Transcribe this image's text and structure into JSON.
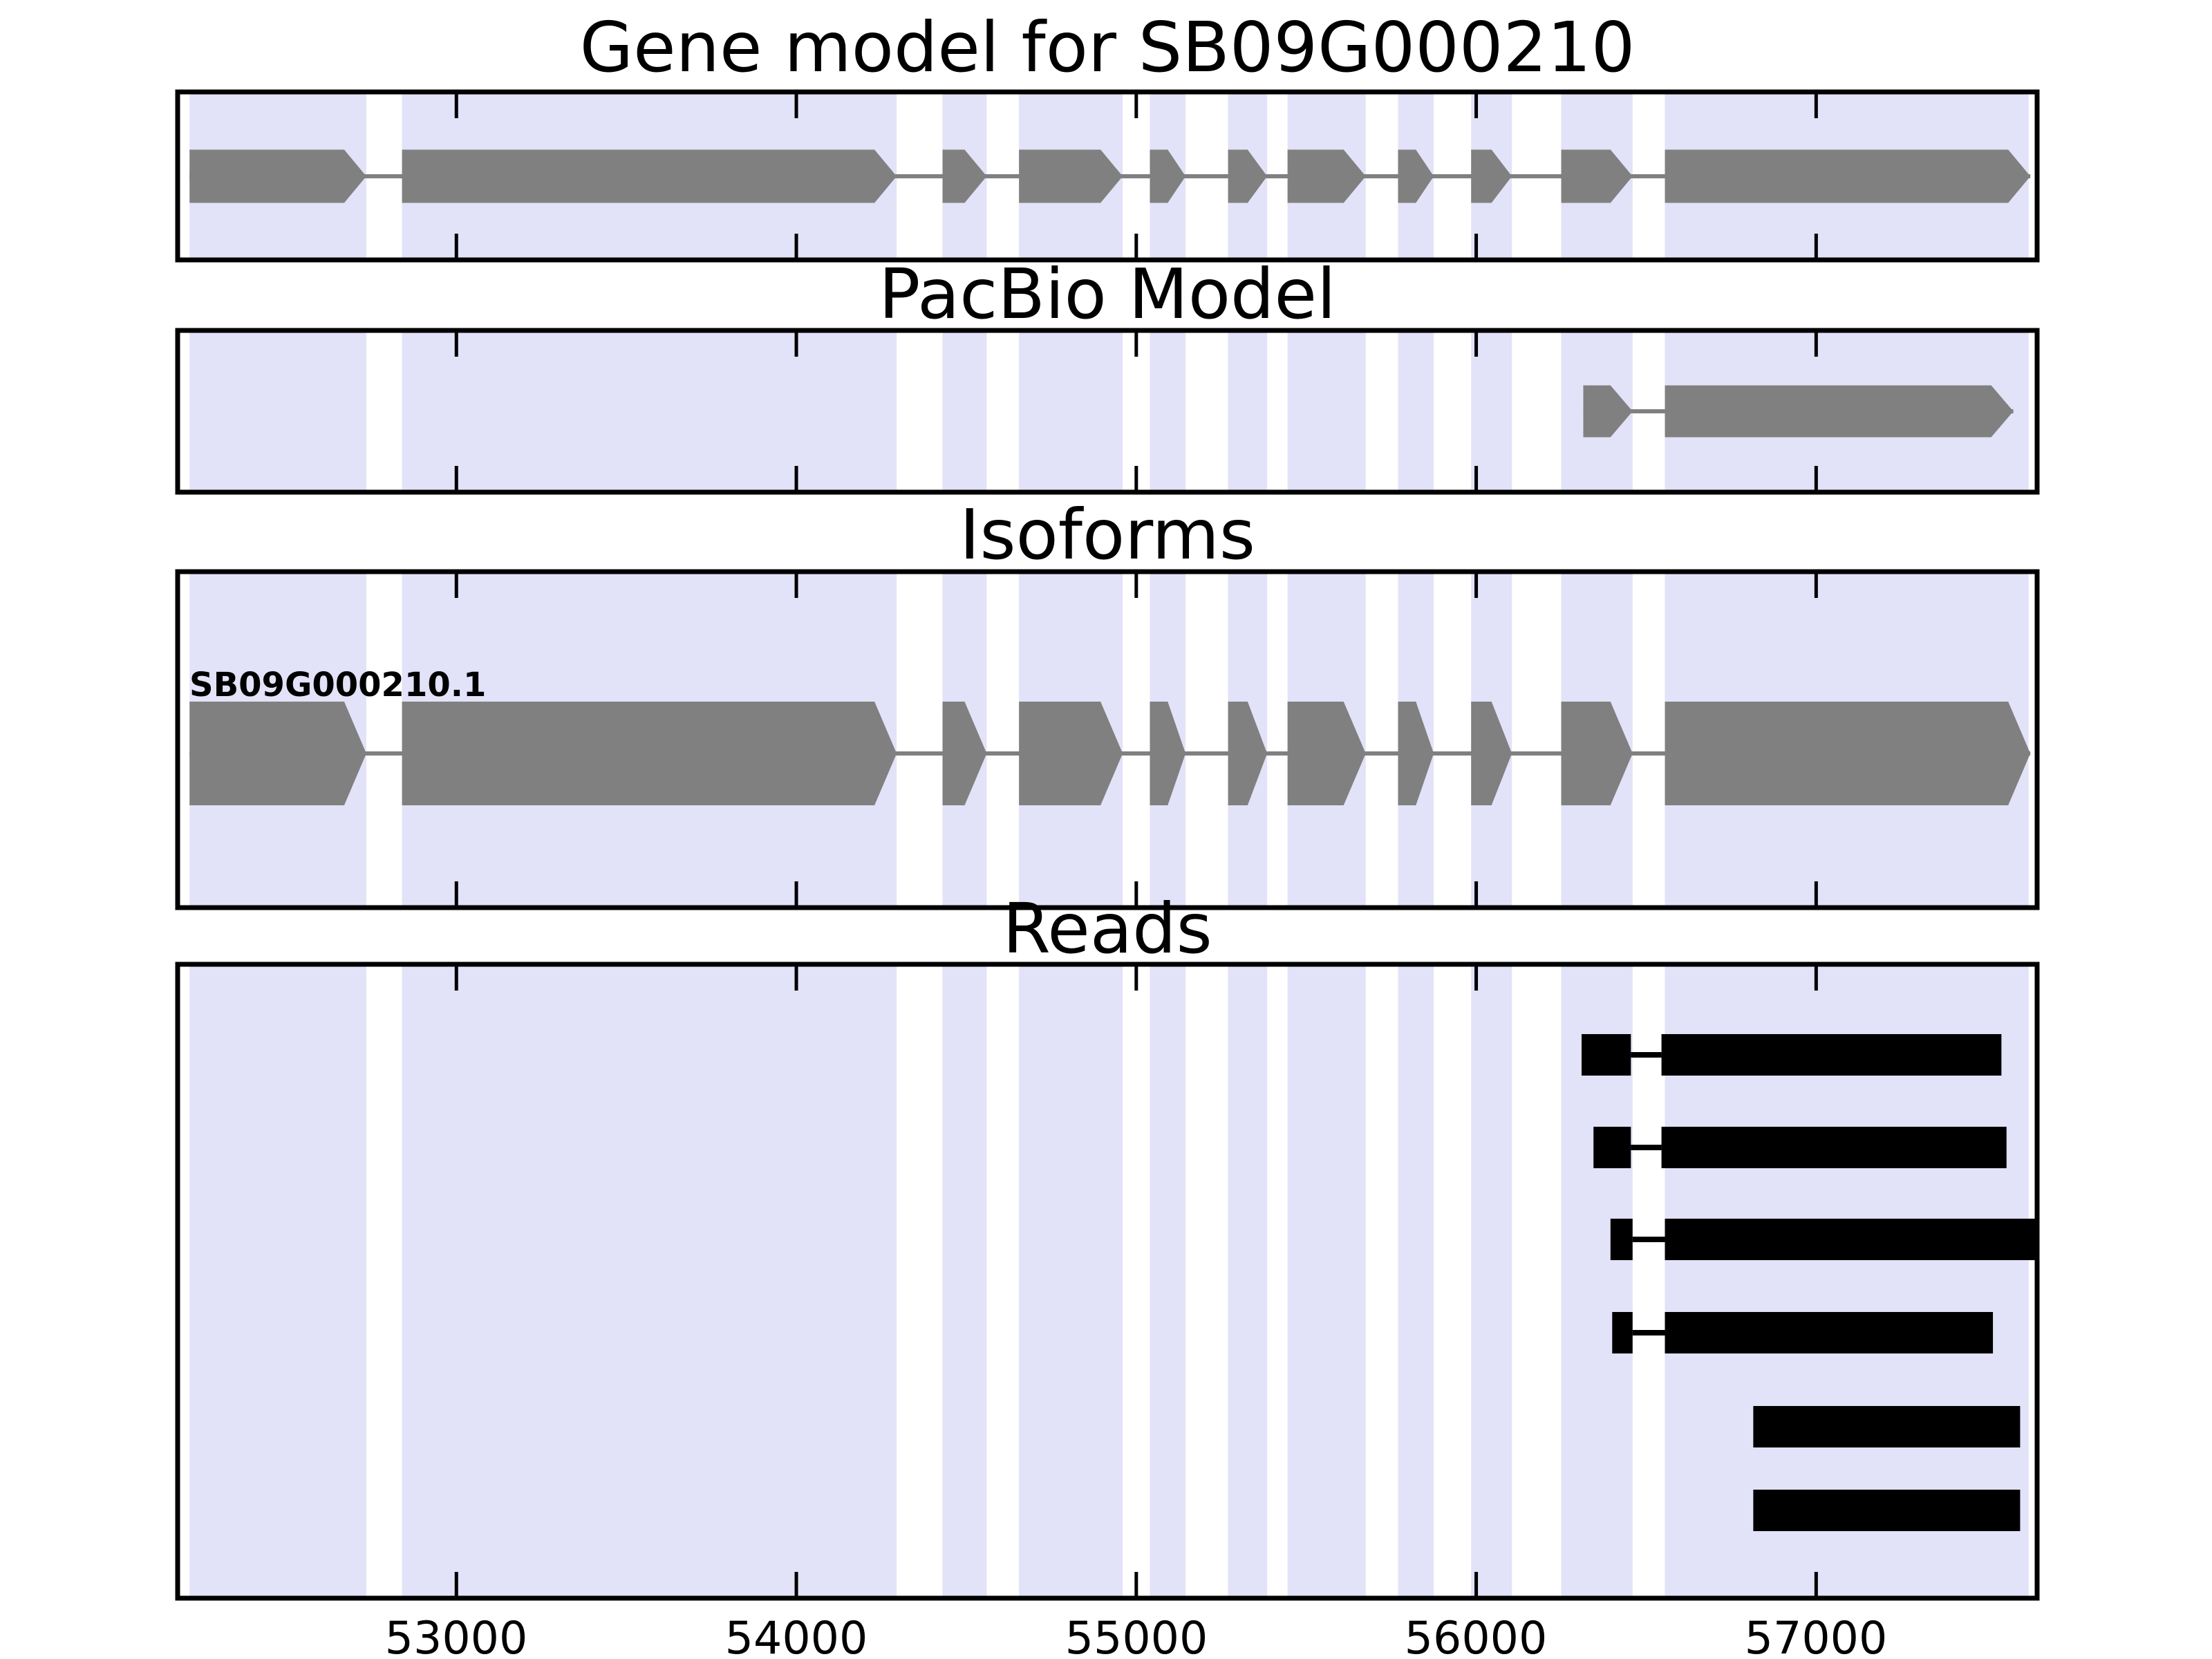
{
  "colors": {
    "background": "#ffffff",
    "highlight_band": "#e2e2f8",
    "exon_fill": "#808080",
    "intron_line": "#808080",
    "read_fill": "#000000",
    "panel_border": "#000000",
    "text": "#000000"
  },
  "chart_data": {
    "type": "gene-structure-tracks",
    "figure_title": "Gene model for SB09G000210",
    "xlim": [
      52180,
      57650
    ],
    "xticks": [
      53000,
      54000,
      55000,
      56000,
      57000
    ],
    "xtick_labels": [
      "53000",
      "54000",
      "55000",
      "56000",
      "57000"
    ],
    "strand": "forward",
    "grid": false,
    "highlight_regions": [
      [
        52215,
        52735
      ],
      [
        52840,
        54295
      ],
      [
        54430,
        54560
      ],
      [
        54655,
        54960
      ],
      [
        55040,
        55145
      ],
      [
        55270,
        55385
      ],
      [
        55445,
        55675
      ],
      [
        55770,
        55875
      ],
      [
        55985,
        56105
      ],
      [
        56250,
        56460
      ],
      [
        56555,
        57625
      ]
    ],
    "tracks": [
      {
        "title": "Gene model for SB09G000210",
        "kind": "gene-model",
        "exons": [
          [
            52215,
            52735
          ],
          [
            52840,
            54295
          ],
          [
            54430,
            54560
          ],
          [
            54655,
            54960
          ],
          [
            55040,
            55145
          ],
          [
            55270,
            55385
          ],
          [
            55445,
            55675
          ],
          [
            55770,
            55875
          ],
          [
            55985,
            56105
          ],
          [
            56250,
            56460
          ],
          [
            56555,
            57630
          ]
        ]
      },
      {
        "title": "PacBio Model",
        "kind": "gene-model",
        "exons": [
          [
            56315,
            56460
          ],
          [
            56555,
            57580
          ]
        ]
      },
      {
        "title": "Isoforms",
        "kind": "isoforms",
        "isoforms": [
          {
            "label": "SB09G000210.1",
            "exons": [
              [
                52215,
                52735
              ],
              [
                52840,
                54295
              ],
              [
                54430,
                54560
              ],
              [
                54655,
                54960
              ],
              [
                55040,
                55145
              ],
              [
                55270,
                55385
              ],
              [
                55445,
                55675
              ],
              [
                55770,
                55875
              ],
              [
                55985,
                56105
              ],
              [
                56250,
                56460
              ],
              [
                56555,
                57630
              ]
            ]
          }
        ]
      },
      {
        "title": "Reads",
        "kind": "reads",
        "reads": [
          {
            "blocks": [
              [
                56310,
                56455
              ],
              [
                56545,
                57545
              ]
            ]
          },
          {
            "blocks": [
              [
                56345,
                56455
              ],
              [
                56545,
                57560
              ]
            ]
          },
          {
            "blocks": [
              [
                56395,
                56460
              ],
              [
                56555,
                57645
              ]
            ]
          },
          {
            "blocks": [
              [
                56400,
                56460
              ],
              [
                56555,
                57520
              ]
            ]
          },
          {
            "blocks": [
              [
                56815,
                57600
              ]
            ]
          },
          {
            "blocks": [
              [
                56815,
                57600
              ]
            ]
          }
        ]
      }
    ]
  }
}
